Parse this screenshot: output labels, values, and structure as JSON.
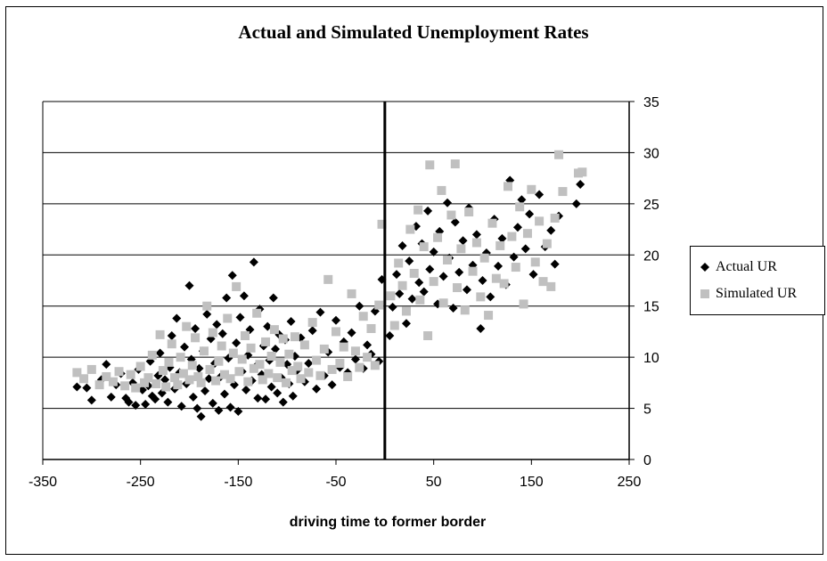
{
  "chart_data": {
    "type": "scatter",
    "title": "Actual and Simulated Unemployment Rates",
    "xlabel": "driving time to former border",
    "ylabel": "",
    "xlim": [
      -350,
      250
    ],
    "ylim": [
      0,
      35
    ],
    "x_ticks": [
      "-350",
      "-250",
      "-150",
      "-50",
      "50",
      "150",
      "250"
    ],
    "y_ticks": [
      "0",
      "5",
      "10",
      "15",
      "20",
      "25",
      "30",
      "35"
    ],
    "y_axis_side": "right",
    "grid": "horizontal",
    "legend_position": "right",
    "vertical_reference_line_x": 0,
    "series": [
      {
        "name": "Actual UR",
        "marker": "diamond",
        "color": "#000000",
        "points": [
          [
            -315,
            7.1
          ],
          [
            -305,
            7.0
          ],
          [
            -300,
            5.8
          ],
          [
            -290,
            7.8
          ],
          [
            -285,
            9.3
          ],
          [
            -280,
            6.1
          ],
          [
            -275,
            7.3
          ],
          [
            -270,
            8.4
          ],
          [
            -265,
            6.0
          ],
          [
            -262,
            5.6
          ],
          [
            -258,
            7.5
          ],
          [
            -255,
            5.3
          ],
          [
            -252,
            8.8
          ],
          [
            -248,
            6.8
          ],
          [
            -245,
            5.4
          ],
          [
            -242,
            7.2
          ],
          [
            -240,
            9.6
          ],
          [
            -238,
            6.2
          ],
          [
            -235,
            5.9
          ],
          [
            -232,
            8.2
          ],
          [
            -230,
            10.4
          ],
          [
            -228,
            6.5
          ],
          [
            -225,
            7.8
          ],
          [
            -222,
            5.6
          ],
          [
            -220,
            9.0
          ],
          [
            -218,
            12.1
          ],
          [
            -215,
            6.9
          ],
          [
            -213,
            13.8
          ],
          [
            -210,
            8.5
          ],
          [
            -208,
            5.2
          ],
          [
            -205,
            11.0
          ],
          [
            -203,
            7.4
          ],
          [
            -200,
            17.0
          ],
          [
            -198,
            9.8
          ],
          [
            -196,
            6.1
          ],
          [
            -194,
            12.8
          ],
          [
            -192,
            5.0
          ],
          [
            -190,
            8.9
          ],
          [
            -188,
            4.2
          ],
          [
            -186,
            10.6
          ],
          [
            -184,
            6.7
          ],
          [
            -182,
            14.2
          ],
          [
            -180,
            7.9
          ],
          [
            -178,
            11.8
          ],
          [
            -176,
            5.5
          ],
          [
            -174,
            9.4
          ],
          [
            -172,
            13.2
          ],
          [
            -170,
            4.8
          ],
          [
            -168,
            8.1
          ],
          [
            -166,
            12.3
          ],
          [
            -164,
            6.4
          ],
          [
            -162,
            15.8
          ],
          [
            -160,
            9.9
          ],
          [
            -158,
            5.1
          ],
          [
            -156,
            18.0
          ],
          [
            -154,
            7.3
          ],
          [
            -152,
            11.4
          ],
          [
            -150,
            4.7
          ],
          [
            -148,
            13.9
          ],
          [
            -146,
            8.6
          ],
          [
            -144,
            16.0
          ],
          [
            -142,
            6.8
          ],
          [
            -140,
            10.2
          ],
          [
            -138,
            12.7
          ],
          [
            -136,
            7.7
          ],
          [
            -134,
            19.3
          ],
          [
            -132,
            9.1
          ],
          [
            -130,
            6.0
          ],
          [
            -128,
            14.7
          ],
          [
            -126,
            8.3
          ],
          [
            -124,
            11.1
          ],
          [
            -122,
            5.9
          ],
          [
            -120,
            13.0
          ],
          [
            -118,
            9.7
          ],
          [
            -116,
            7.1
          ],
          [
            -114,
            15.8
          ],
          [
            -112,
            10.8
          ],
          [
            -110,
            6.5
          ],
          [
            -108,
            12.2
          ],
          [
            -106,
            8.0
          ],
          [
            -104,
            5.6
          ],
          [
            -102,
            11.7
          ],
          [
            -100,
            9.3
          ],
          [
            -98,
            7.4
          ],
          [
            -96,
            13.5
          ],
          [
            -94,
            6.2
          ],
          [
            -92,
            10.1
          ],
          [
            -90,
            8.7
          ],
          [
            -86,
            11.9
          ],
          [
            -82,
            7.6
          ],
          [
            -78,
            9.4
          ],
          [
            -74,
            12.6
          ],
          [
            -70,
            6.9
          ],
          [
            -66,
            14.4
          ],
          [
            -62,
            8.2
          ],
          [
            -58,
            10.5
          ],
          [
            -54,
            7.3
          ],
          [
            -50,
            13.6
          ],
          [
            -46,
            9.0
          ],
          [
            -42,
            11.5
          ],
          [
            -38,
            8.5
          ],
          [
            -34,
            12.4
          ],
          [
            -30,
            9.8
          ],
          [
            -26,
            15.0
          ],
          [
            -22,
            8.9
          ],
          [
            -18,
            11.2
          ],
          [
            -14,
            10.3
          ],
          [
            -10,
            14.5
          ],
          [
            -6,
            9.6
          ],
          [
            -3,
            17.6
          ],
          [
            5,
            12.1
          ],
          [
            8,
            14.9
          ],
          [
            12,
            18.1
          ],
          [
            15,
            16.2
          ],
          [
            18,
            20.9
          ],
          [
            22,
            13.3
          ],
          [
            25,
            19.4
          ],
          [
            28,
            15.7
          ],
          [
            32,
            22.8
          ],
          [
            35,
            17.3
          ],
          [
            38,
            21.1
          ],
          [
            40,
            16.4
          ],
          [
            44,
            24.3
          ],
          [
            46,
            18.6
          ],
          [
            50,
            20.3
          ],
          [
            54,
            15.2
          ],
          [
            56,
            22.3
          ],
          [
            60,
            17.9
          ],
          [
            64,
            25.1
          ],
          [
            66,
            19.7
          ],
          [
            70,
            14.8
          ],
          [
            72,
            23.2
          ],
          [
            76,
            18.3
          ],
          [
            80,
            21.4
          ],
          [
            84,
            16.6
          ],
          [
            86,
            24.6
          ],
          [
            90,
            19.0
          ],
          [
            94,
            22.0
          ],
          [
            98,
            12.8
          ],
          [
            100,
            17.5
          ],
          [
            104,
            20.2
          ],
          [
            108,
            15.9
          ],
          [
            112,
            23.5
          ],
          [
            116,
            18.9
          ],
          [
            120,
            21.6
          ],
          [
            124,
            17.1
          ],
          [
            128,
            27.3
          ],
          [
            132,
            19.8
          ],
          [
            136,
            22.7
          ],
          [
            140,
            25.4
          ],
          [
            144,
            20.6
          ],
          [
            148,
            24.0
          ],
          [
            152,
            18.1
          ],
          [
            158,
            25.9
          ],
          [
            164,
            20.8
          ],
          [
            170,
            22.4
          ],
          [
            174,
            19.1
          ],
          [
            178,
            23.8
          ],
          [
            196,
            25.0
          ],
          [
            200,
            26.9
          ]
        ]
      },
      {
        "name": "Simulated UR",
        "marker": "square",
        "color": "#c0c0c0",
        "points": [
          [
            -315,
            8.5
          ],
          [
            -308,
            7.9
          ],
          [
            -300,
            8.8
          ],
          [
            -292,
            7.3
          ],
          [
            -285,
            8.1
          ],
          [
            -278,
            7.6
          ],
          [
            -272,
            8.6
          ],
          [
            -266,
            7.2
          ],
          [
            -260,
            8.3
          ],
          [
            -255,
            7.0
          ],
          [
            -250,
            9.1
          ],
          [
            -246,
            7.5
          ],
          [
            -242,
            8.0
          ],
          [
            -238,
            10.2
          ],
          [
            -234,
            7.4
          ],
          [
            -230,
            12.2
          ],
          [
            -227,
            8.7
          ],
          [
            -224,
            7.1
          ],
          [
            -221,
            9.5
          ],
          [
            -218,
            11.3
          ],
          [
            -215,
            8.0
          ],
          [
            -212,
            7.3
          ],
          [
            -209,
            10.0
          ],
          [
            -206,
            8.4
          ],
          [
            -203,
            13.0
          ],
          [
            -200,
            7.8
          ],
          [
            -197,
            9.2
          ],
          [
            -194,
            11.9
          ],
          [
            -191,
            8.1
          ],
          [
            -188,
            7.5
          ],
          [
            -185,
            10.6
          ],
          [
            -182,
            15.0
          ],
          [
            -179,
            8.8
          ],
          [
            -176,
            12.4
          ],
          [
            -173,
            7.7
          ],
          [
            -170,
            9.6
          ],
          [
            -167,
            11.1
          ],
          [
            -164,
            8.3
          ],
          [
            -161,
            13.8
          ],
          [
            -158,
            7.9
          ],
          [
            -155,
            10.4
          ],
          [
            -152,
            16.9
          ],
          [
            -149,
            8.6
          ],
          [
            -146,
            9.8
          ],
          [
            -143,
            12.1
          ],
          [
            -140,
            7.6
          ],
          [
            -137,
            10.9
          ],
          [
            -134,
            8.9
          ],
          [
            -131,
            14.3
          ],
          [
            -128,
            9.3
          ],
          [
            -125,
            7.8
          ],
          [
            -122,
            11.5
          ],
          [
            -119,
            8.4
          ],
          [
            -116,
            10.1
          ],
          [
            -113,
            12.7
          ],
          [
            -110,
            8.0
          ],
          [
            -107,
            9.5
          ],
          [
            -104,
            11.8
          ],
          [
            -101,
            7.5
          ],
          [
            -98,
            10.3
          ],
          [
            -95,
            8.7
          ],
          [
            -92,
            12.0
          ],
          [
            -89,
            9.1
          ],
          [
            -86,
            7.9
          ],
          [
            -82,
            11.2
          ],
          [
            -78,
            8.5
          ],
          [
            -74,
            13.4
          ],
          [
            -70,
            9.7
          ],
          [
            -66,
            8.2
          ],
          [
            -62,
            10.8
          ],
          [
            -58,
            17.6
          ],
          [
            -54,
            8.8
          ],
          [
            -50,
            12.5
          ],
          [
            -46,
            9.4
          ],
          [
            -42,
            11.0
          ],
          [
            -38,
            8.1
          ],
          [
            -34,
            16.2
          ],
          [
            -30,
            10.6
          ],
          [
            -26,
            9.0
          ],
          [
            -22,
            14.0
          ],
          [
            -18,
            10.0
          ],
          [
            -14,
            12.8
          ],
          [
            -10,
            9.2
          ],
          [
            -6,
            15.1
          ],
          [
            -3,
            23.0
          ],
          [
            6,
            16.0
          ],
          [
            10,
            13.1
          ],
          [
            14,
            19.2
          ],
          [
            18,
            17.0
          ],
          [
            22,
            14.5
          ],
          [
            26,
            22.5
          ],
          [
            30,
            18.2
          ],
          [
            34,
            24.4
          ],
          [
            36,
            15.6
          ],
          [
            40,
            20.8
          ],
          [
            44,
            12.1
          ],
          [
            46,
            28.8
          ],
          [
            50,
            17.4
          ],
          [
            54,
            21.7
          ],
          [
            58,
            26.3
          ],
          [
            60,
            15.3
          ],
          [
            64,
            19.5
          ],
          [
            68,
            23.9
          ],
          [
            72,
            28.9
          ],
          [
            74,
            16.8
          ],
          [
            78,
            20.6
          ],
          [
            82,
            14.6
          ],
          [
            86,
            24.2
          ],
          [
            90,
            18.4
          ],
          [
            94,
            21.2
          ],
          [
            98,
            15.9
          ],
          [
            102,
            19.7
          ],
          [
            106,
            14.1
          ],
          [
            110,
            23.1
          ],
          [
            114,
            17.7
          ],
          [
            118,
            20.9
          ],
          [
            122,
            17.2
          ],
          [
            126,
            26.7
          ],
          [
            130,
            21.8
          ],
          [
            134,
            18.8
          ],
          [
            138,
            24.7
          ],
          [
            142,
            15.2
          ],
          [
            146,
            22.1
          ],
          [
            150,
            26.4
          ],
          [
            154,
            19.3
          ],
          [
            158,
            23.3
          ],
          [
            162,
            17.4
          ],
          [
            166,
            21.1
          ],
          [
            170,
            16.9
          ],
          [
            174,
            23.6
          ],
          [
            178,
            29.8
          ],
          [
            182,
            26.2
          ],
          [
            198,
            28.0
          ],
          [
            202,
            28.1
          ]
        ]
      }
    ]
  }
}
